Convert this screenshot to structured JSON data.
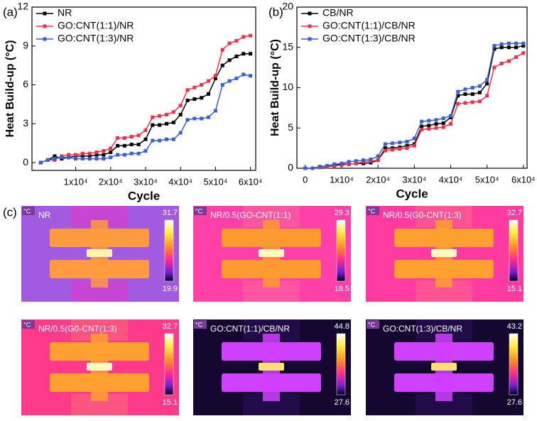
{
  "chart_data": [
    {
      "type": "line",
      "panel_label": "(a)",
      "xlabel": "Cycle",
      "ylabel": "Heat Build-up (°C)",
      "x": [
        0,
        2000,
        4000,
        6000,
        8000,
        10000,
        12000,
        14000,
        16000,
        18000,
        20000,
        22000,
        24000,
        26000,
        28000,
        30000,
        32000,
        34000,
        36000,
        38000,
        40000,
        42000,
        44000,
        46000,
        48000,
        50000,
        52000,
        54000,
        56000,
        58000,
        60000
      ],
      "xlim": [
        -2500,
        61500
      ],
      "xticks": [
        {
          "value": 10000,
          "label": "1x10⁴"
        },
        {
          "value": 20000,
          "label": "2x10⁴"
        },
        {
          "value": 30000,
          "label": "3x10⁴"
        },
        {
          "value": 40000,
          "label": "4x10⁴"
        },
        {
          "value": 50000,
          "label": "5x10⁴"
        },
        {
          "value": 60000,
          "label": "6x10⁴"
        }
      ],
      "ylim": [
        -0.6,
        12
      ],
      "yticks": [
        0,
        3,
        6,
        9,
        12
      ],
      "legend": "top-left",
      "series": [
        {
          "name": "NR",
          "color": "#000000",
          "values": [
            0,
            0.2,
            0.5,
            0.3,
            0.4,
            0.5,
            0.5,
            0.5,
            0.6,
            0.6,
            0.8,
            1.3,
            1.3,
            1.4,
            1.4,
            1.8,
            2.9,
            2.9,
            3.0,
            3.1,
            3.7,
            4.8,
            4.9,
            5.0,
            5.3,
            6.5,
            7.5,
            7.9,
            8.2,
            8.4,
            8.4
          ]
        },
        {
          "name": "GO:CNT(1:1)/NR",
          "color": "#f0304a",
          "values": [
            0,
            0.2,
            0.2,
            0.5,
            0.6,
            0.6,
            0.7,
            0.7,
            0.8,
            0.9,
            1.1,
            1.9,
            1.9,
            2.0,
            2.1,
            2.5,
            3.5,
            3.6,
            3.7,
            3.9,
            4.4,
            5.6,
            5.8,
            6.0,
            6.3,
            6.7,
            8.7,
            9.2,
            9.4,
            9.7,
            9.8
          ]
        },
        {
          "name": "GO:CNT(1:3)/NR",
          "color": "#3a5fd0",
          "values": [
            0,
            0.2,
            0.3,
            0.4,
            0.4,
            0.3,
            0.3,
            0.3,
            0.3,
            0.3,
            0.4,
            0.6,
            0.6,
            0.7,
            0.7,
            0.9,
            1.7,
            1.7,
            1.8,
            1.8,
            2.3,
            3.3,
            3.4,
            3.4,
            3.5,
            4.0,
            6.0,
            6.3,
            6.5,
            6.8,
            6.7
          ]
        }
      ]
    },
    {
      "type": "line",
      "panel_label": "(b)",
      "xlabel": "Cycle",
      "ylabel": "Heat Build-up (°C)",
      "x": [
        0,
        2000,
        4000,
        6000,
        8000,
        10000,
        12000,
        14000,
        16000,
        18000,
        20000,
        22000,
        24000,
        26000,
        28000,
        30000,
        32000,
        34000,
        36000,
        38000,
        40000,
        42000,
        44000,
        46000,
        48000,
        50000,
        52000,
        54000,
        56000,
        58000,
        60000
      ],
      "xlim": [
        -2300,
        61000
      ],
      "xticks": [
        0,
        {
          "value": 10000,
          "label": "1x10⁴"
        },
        {
          "value": 20000,
          "label": "2x10⁴"
        },
        {
          "value": 30000,
          "label": "3x10⁴"
        },
        {
          "value": 40000,
          "label": "4x10⁴"
        },
        {
          "value": 50000,
          "label": "5x10⁴"
        },
        {
          "value": 60000,
          "label": "6x10⁴"
        }
      ],
      "ylim": [
        0,
        20
      ],
      "yticks": [
        0,
        5,
        10,
        15,
        20
      ],
      "legend": "top-left",
      "series": [
        {
          "name": "CB/NR",
          "color": "#000000",
          "values": [
            0,
            0,
            0.2,
            0.3,
            0.4,
            0.5,
            0.5,
            0.6,
            0.6,
            0.7,
            1.0,
            2.5,
            2.5,
            2.6,
            2.8,
            3.0,
            5.2,
            5.3,
            5.5,
            5.6,
            6.3,
            9.0,
            9.2,
            9.2,
            9.4,
            10.5,
            14.8,
            15.0,
            15.0,
            15.0,
            15.2
          ]
        },
        {
          "name": "GO:CNT(1:1)/CB/NR",
          "color": "#f0304a",
          "values": [
            0,
            0,
            0.1,
            0.2,
            0.3,
            0.4,
            0.5,
            0.6,
            0.8,
            0.9,
            1.0,
            2.2,
            2.3,
            2.4,
            2.5,
            2.8,
            4.8,
            4.9,
            5.0,
            5.1,
            5.5,
            8.0,
            8.1,
            8.2,
            8.3,
            9.0,
            12.5,
            13.0,
            13.3,
            13.8,
            14.3
          ]
        },
        {
          "name": "GO:CNT(1:3)/CB/NR",
          "color": "#3a5fd0",
          "values": [
            0,
            0,
            0.2,
            0.3,
            0.5,
            0.6,
            0.8,
            0.9,
            1.0,
            1.1,
            1.5,
            3.0,
            3.1,
            3.2,
            3.3,
            3.7,
            5.8,
            5.9,
            6.0,
            6.2,
            6.5,
            9.5,
            9.8,
            10.0,
            10.2,
            11.0,
            15.2,
            15.4,
            15.5,
            15.5,
            15.5
          ]
        }
      ]
    }
  ],
  "thermal": {
    "panel_label": "(c)",
    "unit": "°C",
    "images": [
      {
        "title": "NR",
        "max": 31.7,
        "min": 19.9
      },
      {
        "title": "NR/0.5(GO-CNT(1:1)",
        "max": 29.3,
        "min": 18.5
      },
      {
        "title": "NR/0.5(G0-CNT(1:3)",
        "max": 32.7,
        "min": 15.1
      },
      {
        "title": "NR/0.5(G0-CNT(1:3)",
        "max": 32.7,
        "min": 15.1
      },
      {
        "title": "GO:CNT(1:1)/CB/NR",
        "max": 44.8,
        "min": 27.6
      },
      {
        "title": "GO:CNT(1:3)/CB/NR",
        "max": 43.2,
        "min": 27.6
      }
    ]
  }
}
